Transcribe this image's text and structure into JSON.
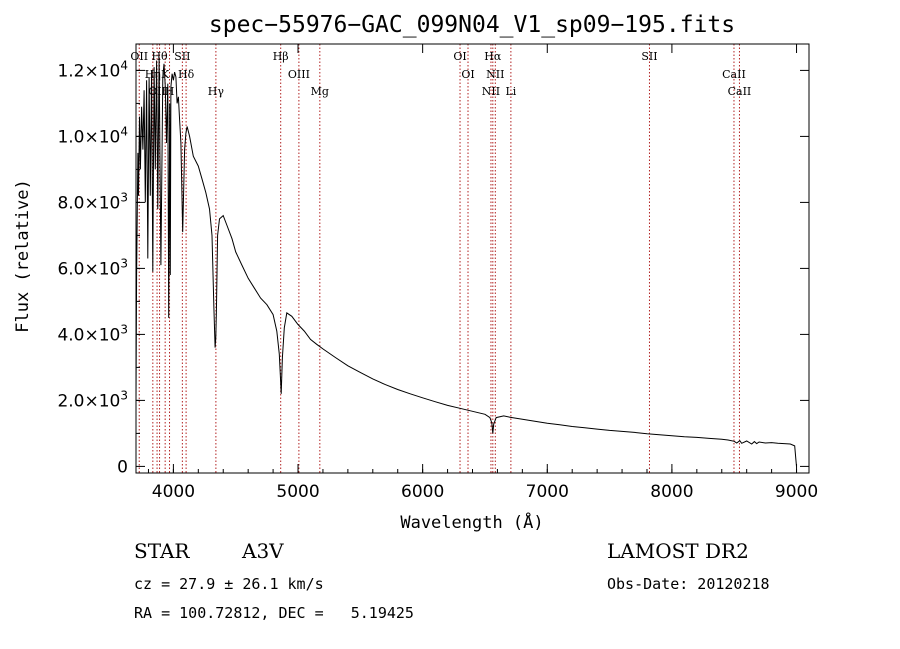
{
  "chart_data": {
    "type": "line",
    "title": "spec−55976−GAC_099N04_V1_sp09−195.fits",
    "xlabel": "Wavelength (Å)",
    "ylabel": "Flux (relative)",
    "xlim": [
      3700,
      9100
    ],
    "ylim": [
      -200,
      12800
    ],
    "x_ticks": [
      {
        "v": 4000,
        "label": "4000"
      },
      {
        "v": 5000,
        "label": "5000"
      },
      {
        "v": 6000,
        "label": "6000"
      },
      {
        "v": 7000,
        "label": "7000"
      },
      {
        "v": 8000,
        "label": "8000"
      },
      {
        "v": 9000,
        "label": "9000"
      }
    ],
    "y_ticks": [
      {
        "v": 0,
        "mant": "0",
        "exp": ""
      },
      {
        "v": 2000,
        "mant": "2.0×10",
        "exp": "3"
      },
      {
        "v": 4000,
        "mant": "4.0×10",
        "exp": "3"
      },
      {
        "v": 6000,
        "mant": "6.0×10",
        "exp": "3"
      },
      {
        "v": 8000,
        "mant": "8.0×10",
        "exp": "3"
      },
      {
        "v": 10000,
        "mant": "1.0×10",
        "exp": "4"
      },
      {
        "v": 12000,
        "mant": "1.2×10",
        "exp": "4"
      }
    ],
    "grid": false,
    "series": [
      {
        "x": [
          3700,
          3705,
          3710,
          3715,
          3720,
          3728,
          3735,
          3745,
          3755,
          3765,
          3775,
          3785,
          3795,
          3805,
          3815,
          3825,
          3835,
          3845,
          3855,
          3865,
          3875,
          3885,
          3900,
          3915,
          3925,
          3935,
          3945,
          3955,
          3962,
          3970,
          3975,
          3980,
          3990,
          4000,
          4010,
          4020,
          4030,
          4040,
          4050,
          4060,
          4075,
          4090,
          4100,
          4110,
          4130,
          4160,
          4200,
          4230,
          4260,
          4290,
          4310,
          4325,
          4335,
          4340,
          4345,
          4355,
          4370,
          4400,
          4430,
          4470,
          4500,
          4550,
          4600,
          4650,
          4700,
          4750,
          4800,
          4830,
          4850,
          4860,
          4865,
          4875,
          4890,
          4910,
          4950,
          5000,
          5050,
          5100,
          5150,
          5200,
          5300,
          5400,
          5500,
          5600,
          5700,
          5800,
          5900,
          6000,
          6100,
          6200,
          6300,
          6400,
          6500,
          6540,
          6555,
          6563,
          6570,
          6590,
          6650,
          6700,
          6800,
          6900,
          7000,
          7100,
          7200,
          7300,
          7400,
          7500,
          7600,
          7700,
          7800,
          7900,
          8000,
          8100,
          8200,
          8300,
          8400,
          8450,
          8500,
          8520,
          8545,
          8560,
          8600,
          8640,
          8662,
          8680,
          8700,
          8750,
          8800,
          8850,
          8900,
          8950,
          8985,
          8995,
          9000
        ],
        "y": [
          2000,
          5800,
          7500,
          9500,
          8200,
          10600,
          9000,
          10900,
          9600,
          11400,
          8000,
          11700,
          6300,
          11800,
          8200,
          12000,
          5900,
          12100,
          9000,
          12300,
          7800,
          12400,
          6100,
          11800,
          12200,
          11500,
          9800,
          11600,
          4500,
          11000,
          5800,
          11500,
          11900,
          11700,
          11950,
          11800,
          11000,
          11200,
          10500,
          9800,
          7100,
          9600,
          10100,
          10300,
          10000,
          9400,
          9100,
          8700,
          8300,
          7800,
          7000,
          4800,
          3600,
          3900,
          4700,
          7000,
          7500,
          7600,
          7300,
          6900,
          6500,
          6100,
          5700,
          5400,
          5100,
          4900,
          4600,
          4100,
          3400,
          2600,
          2200,
          3300,
          4200,
          4650,
          4550,
          4300,
          4100,
          3850,
          3700,
          3560,
          3300,
          3050,
          2850,
          2650,
          2480,
          2330,
          2200,
          2080,
          1960,
          1850,
          1760,
          1670,
          1580,
          1480,
          1320,
          1000,
          1280,
          1480,
          1530,
          1490,
          1430,
          1370,
          1310,
          1260,
          1210,
          1170,
          1130,
          1090,
          1060,
          1030,
          990,
          960,
          930,
          900,
          880,
          850,
          820,
          800,
          760,
          710,
          780,
          700,
          770,
          680,
          750,
          690,
          740,
          710,
          720,
          700,
          690,
          680,
          620,
          200,
          0
        ]
      }
    ],
    "lines": [
      {
        "x": 3726,
        "label": "OII"
      },
      {
        "x": 3835,
        "label": "Hη"
      },
      {
        "x": 3869,
        "label": "OII"
      },
      {
        "x": 3889,
        "label": "Hθ"
      },
      {
        "x": 3934,
        "label": "K"
      },
      {
        "x": 3969,
        "label": "H"
      },
      {
        "x": 4072,
        "label": "SII"
      },
      {
        "x": 4102,
        "label": "Hδ"
      },
      {
        "x": 4341,
        "label": "Hγ"
      },
      {
        "x": 4861,
        "label": "Hβ"
      },
      {
        "x": 5007,
        "label": "OIII"
      },
      {
        "x": 5175,
        "label": "Mg"
      },
      {
        "x": 6300,
        "label": "OI"
      },
      {
        "x": 6364,
        "label": "OI"
      },
      {
        "x": 6548,
        "label": "NII"
      },
      {
        "x": 6563,
        "label": "Hα"
      },
      {
        "x": 6583,
        "label": "NII"
      },
      {
        "x": 6708,
        "label": "Li"
      },
      {
        "x": 7820,
        "label": "SII"
      },
      {
        "x": 8498,
        "label": "CaII"
      },
      {
        "x": 8542,
        "label": "CaII"
      }
    ]
  },
  "info": {
    "class_label": "STAR",
    "subclass": "A3V",
    "cz": "cz = 27.9 ± 26.1 km/s",
    "radec": "RA = 100.72812, DEC =   5.19425",
    "survey": "LAMOST DR2",
    "obs_date": "Obs-Date: 20120218"
  }
}
